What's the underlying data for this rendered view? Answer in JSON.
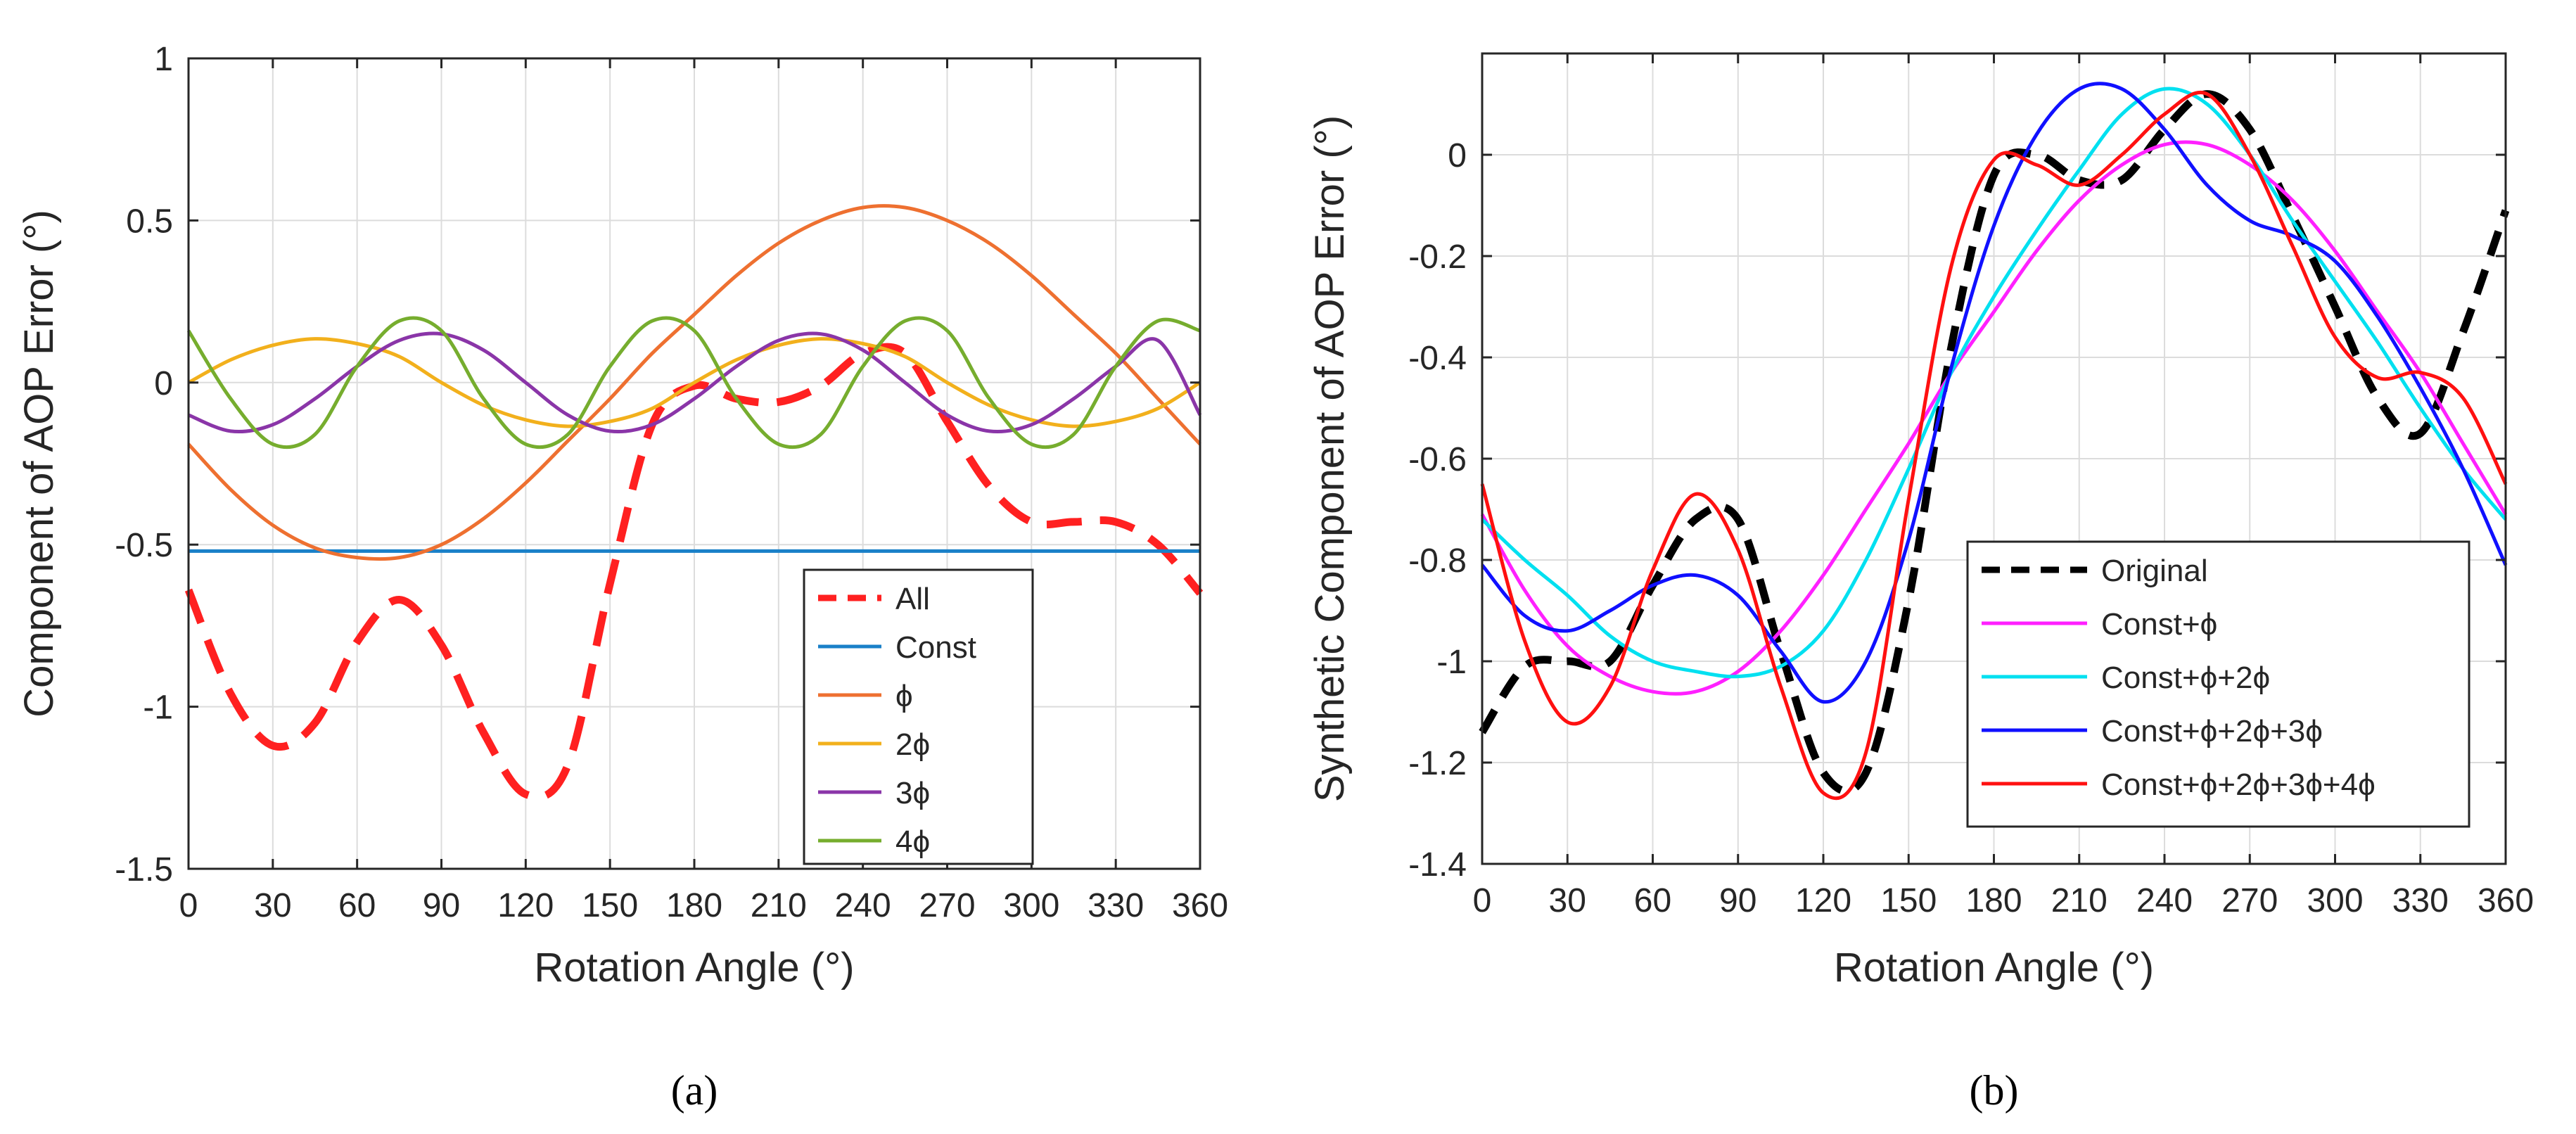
{
  "chart_data": [
    {
      "type": "line",
      "panel_label": "(a)",
      "xlabel": "Rotation Angle (°)",
      "ylabel": "Component of  AOP Error (°)",
      "xlim": [
        0,
        360
      ],
      "ylim": [
        -1.5,
        1
      ],
      "xticks": [
        "0",
        "30",
        "60",
        "90",
        "120",
        "150",
        "180",
        "210",
        "240",
        "270",
        "300",
        "330",
        "360"
      ],
      "yticks": [
        "-1.5",
        "-1",
        "-0.5",
        "0",
        "0.5",
        "1"
      ],
      "grid": true,
      "legend_position": "bottom-right",
      "x": [
        0,
        15,
        30,
        45,
        60,
        75,
        90,
        105,
        120,
        135,
        150,
        165,
        180,
        195,
        210,
        225,
        240,
        255,
        270,
        285,
        300,
        315,
        330,
        345,
        360
      ],
      "series": [
        {
          "name": "All",
          "color": "#ff2020",
          "dash": true,
          "values": [
            -0.64,
            -0.96,
            -1.12,
            -1.05,
            -0.8,
            -0.67,
            -0.81,
            -1.08,
            -1.27,
            -1.18,
            -0.62,
            -0.13,
            -0.01,
            -0.05,
            -0.06,
            -0.01,
            0.09,
            0.09,
            -0.12,
            -0.32,
            -0.43,
            -0.43,
            -0.43,
            -0.5,
            -0.65
          ]
        },
        {
          "name": "Const",
          "color": "#1a80c8",
          "dash": false,
          "values": [
            -0.52,
            -0.52,
            -0.52,
            -0.52,
            -0.52,
            -0.52,
            -0.52,
            -0.52,
            -0.52,
            -0.52,
            -0.52,
            -0.52,
            -0.52,
            -0.52,
            -0.52,
            -0.52,
            -0.52,
            -0.52,
            -0.52,
            -0.52,
            -0.52,
            -0.52,
            -0.52,
            -0.52,
            -0.52
          ]
        },
        {
          "name": "ϕ",
          "color": "#ee7030",
          "dash": false,
          "values": [
            -0.19,
            -0.33,
            -0.44,
            -0.51,
            -0.54,
            -0.54,
            -0.5,
            -0.42,
            -0.31,
            -0.18,
            -0.05,
            0.09,
            0.21,
            0.33,
            0.43,
            0.5,
            0.54,
            0.54,
            0.5,
            0.43,
            0.33,
            0.21,
            0.09,
            -0.05,
            -0.19
          ]
        },
        {
          "name": "2ϕ",
          "color": "#f2b01c",
          "dash": false,
          "values": [
            0.0,
            0.07,
            0.115,
            0.135,
            0.12,
            0.08,
            0.0,
            -0.07,
            -0.115,
            -0.135,
            -0.12,
            -0.08,
            0.0,
            0.07,
            0.115,
            0.135,
            0.12,
            0.08,
            0.0,
            -0.07,
            -0.115,
            -0.135,
            -0.12,
            -0.08,
            0.0
          ]
        },
        {
          "name": "3ϕ",
          "color": "#8a35a8",
          "dash": false,
          "values": [
            -0.1,
            -0.15,
            -0.13,
            -0.05,
            0.05,
            0.13,
            0.15,
            0.1,
            0.0,
            -0.1,
            -0.15,
            -0.13,
            -0.05,
            0.05,
            0.13,
            0.15,
            0.1,
            0.0,
            -0.1,
            -0.15,
            -0.13,
            -0.05,
            0.05,
            0.13,
            -0.1
          ]
        },
        {
          "name": "4ϕ",
          "color": "#76ad2e",
          "dash": false,
          "values": [
            0.16,
            -0.05,
            -0.19,
            -0.16,
            0.05,
            0.19,
            0.16,
            -0.05,
            -0.19,
            -0.16,
            0.05,
            0.19,
            0.16,
            -0.05,
            -0.19,
            -0.16,
            0.05,
            0.19,
            0.16,
            -0.05,
            -0.19,
            -0.16,
            0.05,
            0.19,
            0.16
          ]
        }
      ]
    },
    {
      "type": "line",
      "panel_label": "(b)",
      "xlabel": "Rotation Angle (°)",
      "ylabel": "Synthetic Component of AOP Error (°)",
      "xlim": [
        0,
        360
      ],
      "ylim": [
        -1.4,
        0.2
      ],
      "xticks": [
        "0",
        "30",
        "60",
        "90",
        "120",
        "150",
        "180",
        "210",
        "240",
        "270",
        "300",
        "330",
        "360"
      ],
      "yticks": [
        "-1.4",
        "-1.2",
        "-1",
        "-0.8",
        "-0.6",
        "-0.4",
        "-0.2",
        "0"
      ],
      "grid": true,
      "legend_position": "bottom-right",
      "x": [
        0,
        15,
        30,
        45,
        60,
        75,
        90,
        105,
        120,
        135,
        150,
        165,
        180,
        195,
        210,
        225,
        240,
        255,
        270,
        285,
        300,
        315,
        330,
        345,
        360
      ],
      "series": [
        {
          "name": "Original",
          "color": "#000000",
          "dash": true,
          "values": [
            -1.14,
            -1.01,
            -1.0,
            -1.0,
            -0.85,
            -0.72,
            -0.72,
            -0.98,
            -1.22,
            -1.22,
            -0.88,
            -0.38,
            -0.04,
            0.0,
            -0.05,
            -0.05,
            0.05,
            0.12,
            0.05,
            -0.12,
            -0.3,
            -0.48,
            -0.55,
            -0.35,
            -0.11
          ]
        },
        {
          "name": "Const+ϕ",
          "color": "#ff20ff",
          "dash": false,
          "values": [
            -0.71,
            -0.86,
            -0.97,
            -1.03,
            -1.06,
            -1.06,
            -1.02,
            -0.94,
            -0.83,
            -0.7,
            -0.57,
            -0.43,
            -0.31,
            -0.19,
            -0.09,
            -0.02,
            0.02,
            0.02,
            -0.02,
            -0.09,
            -0.19,
            -0.31,
            -0.43,
            -0.57,
            -0.71
          ]
        },
        {
          "name": "Const+ϕ+2ϕ",
          "color": "#00e0f0",
          "dash": false,
          "values": [
            -0.72,
            -0.8,
            -0.87,
            -0.95,
            -1.0,
            -1.02,
            -1.03,
            -1.01,
            -0.94,
            -0.8,
            -0.62,
            -0.43,
            -0.28,
            -0.15,
            -0.03,
            0.08,
            0.13,
            0.1,
            0.0,
            -0.13,
            -0.25,
            -0.37,
            -0.5,
            -0.62,
            -0.72
          ]
        },
        {
          "name": "Const+ϕ+2ϕ+3ϕ",
          "color": "#1010ff",
          "dash": false,
          "values": [
            -0.81,
            -0.91,
            -0.94,
            -0.9,
            -0.85,
            -0.83,
            -0.87,
            -0.98,
            -1.08,
            -1.0,
            -0.76,
            -0.42,
            -0.14,
            0.04,
            0.13,
            0.13,
            0.05,
            -0.06,
            -0.13,
            -0.16,
            -0.21,
            -0.32,
            -0.46,
            -0.62,
            -0.81
          ]
        },
        {
          "name": "Const+ϕ+2ϕ+3ϕ+4ϕ",
          "color": "#ff1010",
          "dash": false,
          "values": [
            -0.65,
            -0.96,
            -1.12,
            -1.05,
            -0.82,
            -0.67,
            -0.78,
            -1.05,
            -1.26,
            -1.18,
            -0.68,
            -0.22,
            -0.01,
            -0.02,
            -0.06,
            0.0,
            0.08,
            0.12,
            0.0,
            -0.18,
            -0.36,
            -0.44,
            -0.43,
            -0.48,
            -0.65
          ]
        }
      ]
    }
  ]
}
